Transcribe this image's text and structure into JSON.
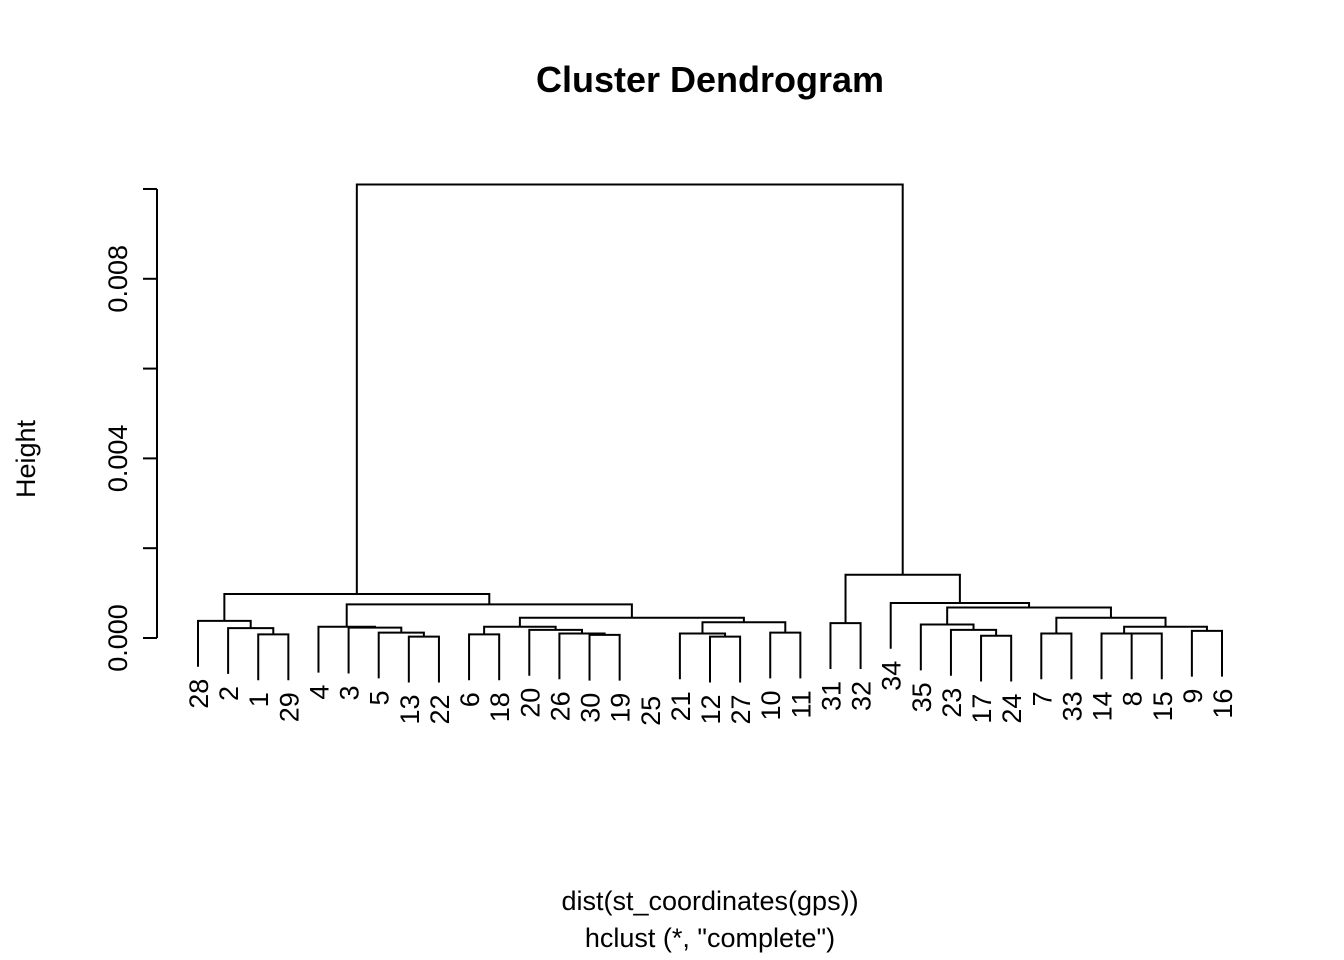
{
  "chart_data": {
    "type": "dendrogram",
    "title": "Cluster Dendrogram",
    "ylabel": "Height",
    "xlabel": "dist(st_coordinates(gps))",
    "sub": "hclust (*, \"complete\")",
    "ylim": [
      0,
      0.0102
    ],
    "yticks": [
      0,
      0.002,
      0.004,
      0.006,
      0.008,
      0.01
    ],
    "yticklabels": [
      "0.000",
      "",
      "0.004",
      "",
      "0.008",
      ""
    ],
    "leaves": [
      "28",
      "2",
      "1",
      "29",
      "4",
      "3",
      "5",
      "13",
      "22",
      "6",
      "18",
      "20",
      "26",
      "30",
      "19",
      "25",
      "21",
      "12",
      "27",
      "10",
      "11",
      "31",
      "32",
      "34",
      "35",
      "23",
      "17",
      "24",
      "7",
      "33",
      "14",
      "8",
      "15",
      "9",
      "16"
    ],
    "merges": [
      {
        "a": "L13",
        "b": "L14",
        "h": 7e-05
      },
      {
        "a": "L12",
        "b": "M0",
        "h": 0.0001
      },
      {
        "a": "L19",
        "b": "L20",
        "h": 0.00012
      },
      {
        "a": "L11",
        "b": "M1",
        "h": 0.00018
      },
      {
        "a": "L31",
        "b": "L32",
        "h": 0.0001
      },
      {
        "a": "L2",
        "b": "L3",
        "h": 8e-05
      },
      {
        "a": "L7",
        "b": "L8",
        "h": 3e-05
      },
      {
        "a": "L9",
        "b": "L10",
        "h": 8e-05
      },
      {
        "a": "L26",
        "b": "L27",
        "h": 5e-05
      },
      {
        "a": "L6",
        "b": "M6",
        "h": 0.00012
      },
      {
        "a": "L25",
        "b": "M8",
        "h": 0.00018
      },
      {
        "a": "L28",
        "b": "L29",
        "h": 0.0001
      },
      {
        "a": "L30",
        "b": "M4",
        "h": 0.0001
      },
      {
        "a": "L33",
        "b": "L34",
        "h": 0.00016
      },
      {
        "a": "L1",
        "b": "M5",
        "h": 0.00022
      },
      {
        "a": "L17",
        "b": "L18",
        "h": 3e-05
      },
      {
        "a": "L16",
        "b": "M15",
        "h": 0.0001
      },
      {
        "a": "L5",
        "b": "M9",
        "h": 0.00023
      },
      {
        "a": "L24",
        "b": "M10",
        "h": 0.0003
      },
      {
        "a": "L0",
        "b": "M14",
        "h": 0.00038
      },
      {
        "a": "L4",
        "b": "M17",
        "h": 0.00025
      },
      {
        "a": "M3",
        "b": "M7",
        "h": 0.00025
      },
      {
        "a": "M12",
        "b": "M13",
        "h": 0.00025
      },
      {
        "a": "M16",
        "b": "M2",
        "h": 0.00035
      },
      {
        "a": "L21",
        "b": "L22",
        "h": 0.00033
      },
      {
        "a": "M11",
        "b": "M22",
        "h": 0.00045
      },
      {
        "a": "M21",
        "b": "M23",
        "h": 0.00045
      },
      {
        "a": "M18",
        "b": "M25",
        "h": 0.00068
      },
      {
        "a": "L23",
        "b": "M27",
        "h": 0.00078
      },
      {
        "a": "M20",
        "b": "M26",
        "h": 0.00075
      },
      {
        "a": "M19",
        "b": "M29",
        "h": 0.00098
      },
      {
        "a": "M24",
        "b": "M28",
        "h": 0.00141
      },
      {
        "a": "M30",
        "b": "M31",
        "h": 0.0101
      }
    ]
  }
}
